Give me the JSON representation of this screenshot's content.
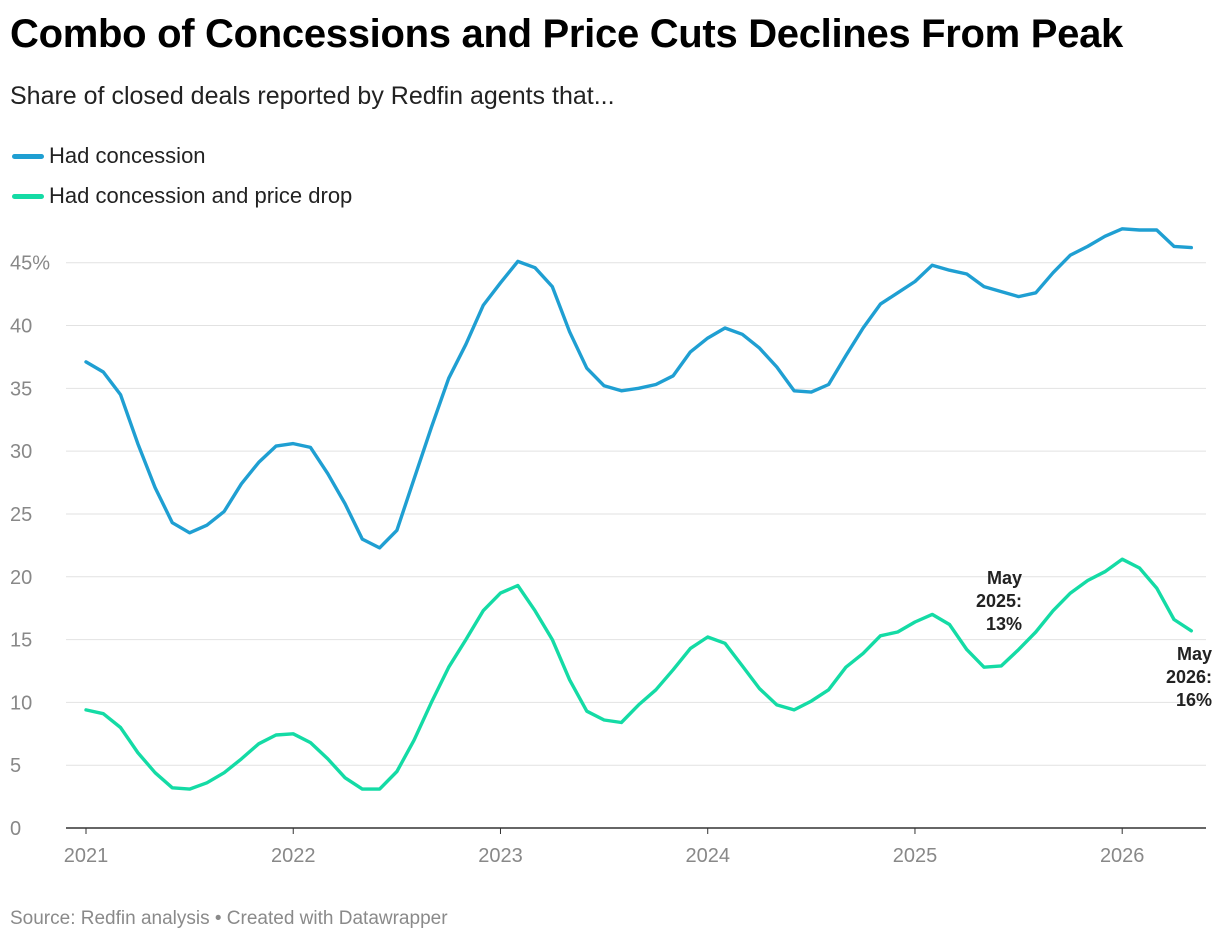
{
  "title": "Combo of Concessions and Price Cuts Declines From Peak",
  "subtitle": "Share of closed deals reported by Redfin agents that...",
  "footer": "Source: Redfin analysis • Created with Datawrapper",
  "colors": {
    "concession": "#1f9fd2",
    "concession_price_drop": "#14dba5"
  },
  "chart_data": {
    "type": "line",
    "title": "Combo of Concessions and Price Cuts Declines From Peak",
    "subtitle": "Share of closed deals reported by Redfin agents that...",
    "xlabel": "",
    "ylabel": "",
    "x_ticks": [
      "2021",
      "2022",
      "2023",
      "2024",
      "2025",
      "2026"
    ],
    "y_ticks": [
      "0",
      "5",
      "10",
      "15",
      "20",
      "25",
      "30",
      "35",
      "40",
      "45%"
    ],
    "ylim": [
      0,
      48
    ],
    "xlim": [
      "2021-01",
      "2026-05"
    ],
    "grid": true,
    "legend_position": "top-left",
    "x": [
      "2021-01",
      "2021-02",
      "2021-03",
      "2021-04",
      "2021-05",
      "2021-06",
      "2021-07",
      "2021-08",
      "2021-09",
      "2021-10",
      "2021-11",
      "2021-12",
      "2022-01",
      "2022-02",
      "2022-03",
      "2022-04",
      "2022-05",
      "2022-06",
      "2022-07",
      "2022-08",
      "2022-09",
      "2022-10",
      "2022-11",
      "2022-12",
      "2023-01",
      "2023-02",
      "2023-03",
      "2023-04",
      "2023-05",
      "2023-06",
      "2023-07",
      "2023-08",
      "2023-09",
      "2023-10",
      "2023-11",
      "2023-12",
      "2024-01",
      "2024-02",
      "2024-03",
      "2024-04",
      "2024-05",
      "2024-06",
      "2024-07",
      "2024-08",
      "2024-09",
      "2024-10",
      "2024-11",
      "2024-12",
      "2025-01",
      "2025-02",
      "2025-03",
      "2025-04",
      "2025-05",
      "2025-06",
      "2025-07",
      "2025-08",
      "2025-09",
      "2025-10",
      "2025-11",
      "2025-12",
      "2026-01",
      "2026-02",
      "2026-03",
      "2026-04",
      "2026-05"
    ],
    "series": [
      {
        "name": "Had concession",
        "color": "#1f9fd2",
        "values": [
          37.1,
          36.3,
          34.5,
          30.6,
          27.1,
          24.3,
          23.5,
          24.1,
          25.2,
          27.4,
          29.1,
          30.4,
          30.6,
          30.3,
          28.2,
          25.8,
          23.0,
          22.3,
          23.7,
          27.8,
          31.9,
          35.8,
          38.5,
          41.6,
          43.4,
          45.1,
          44.6,
          43.1,
          39.5,
          36.6,
          35.2,
          34.8,
          35.0,
          35.3,
          36.0,
          37.9,
          39.0,
          39.8,
          39.3,
          38.2,
          36.7,
          34.8,
          34.7,
          35.3,
          37.6,
          39.8,
          41.7,
          42.6,
          43.5,
          44.8,
          44.4,
          44.1,
          43.1,
          42.7,
          42.3,
          42.6,
          44.2,
          45.6,
          46.3,
          47.1,
          47.7,
          47.6,
          47.6,
          46.3,
          46.2
        ]
      },
      {
        "name": "Had concession and price drop",
        "color": "#14dba5",
        "values": [
          9.4,
          9.1,
          8.0,
          6.0,
          4.4,
          3.2,
          3.1,
          3.6,
          4.4,
          5.5,
          6.7,
          7.4,
          7.5,
          6.8,
          5.5,
          4.0,
          3.1,
          3.1,
          4.5,
          7.0,
          10.0,
          12.8,
          15.0,
          17.3,
          18.7,
          19.3,
          17.3,
          15.0,
          11.8,
          9.3,
          8.6,
          8.4,
          9.8,
          11.0,
          12.6,
          14.3,
          15.2,
          14.7,
          12.9,
          11.1,
          9.8,
          9.4,
          10.1,
          11.0,
          12.8,
          13.9,
          15.3,
          15.6,
          16.4,
          17.0,
          16.2,
          14.2,
          12.8,
          12.9,
          14.2,
          15.6,
          17.3,
          18.7,
          19.7,
          20.4,
          21.4,
          20.7,
          19.1,
          16.6,
          15.7
        ]
      }
    ],
    "annotations": [
      {
        "series": "Had concession and price drop",
        "x": "2025-05",
        "lines": [
          "May",
          "2025:",
          "13%"
        ]
      },
      {
        "series": "Had concession and price drop",
        "x": "2026-05",
        "lines": [
          "May",
          "2026:",
          "16%"
        ]
      }
    ]
  }
}
